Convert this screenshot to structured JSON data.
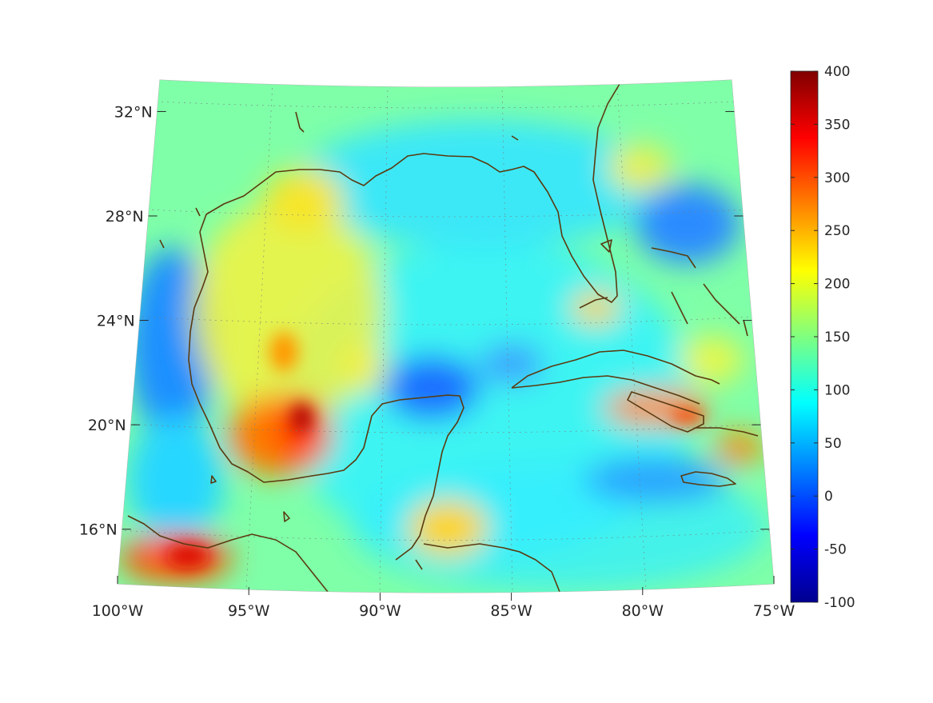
{
  "map": {
    "projection": "conic",
    "lon_range": [
      -100,
      -75
    ],
    "lat_range": [
      14,
      33
    ],
    "lon_ticks": [
      {
        "value": -100,
        "label": "100°W"
      },
      {
        "value": -95,
        "label": "95°W"
      },
      {
        "value": -90,
        "label": "90°W"
      },
      {
        "value": -85,
        "label": "85°W"
      },
      {
        "value": -80,
        "label": "80°W"
      },
      {
        "value": -75,
        "label": "75°W"
      }
    ],
    "lat_ticks": [
      {
        "value": 16,
        "label": "16°N"
      },
      {
        "value": 20,
        "label": "20°N"
      },
      {
        "value": 24,
        "label": "24°N"
      },
      {
        "value": 28,
        "label": "28°N"
      },
      {
        "value": 32,
        "label": "32°N"
      }
    ],
    "grid": true,
    "coastline_color": "#5a3a10",
    "background_color": "#7fffb0"
  },
  "colorbar": {
    "colormap": "jet",
    "range": [
      -100,
      400
    ],
    "ticks": [
      "400",
      "350",
      "300",
      "250",
      "200",
      "150",
      "100",
      "50",
      "0",
      "-50",
      "-100"
    ]
  }
}
